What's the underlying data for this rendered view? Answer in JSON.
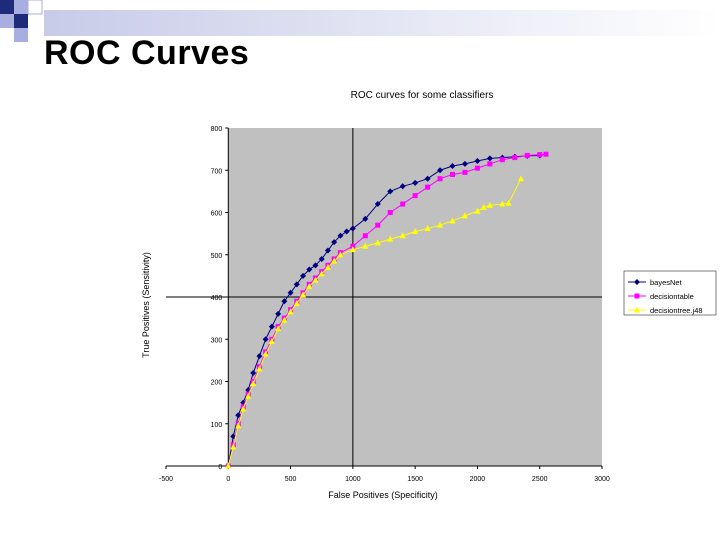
{
  "slide": {
    "title": "ROC Curves"
  },
  "colors": {
    "deco_dark": "#1f2a7a",
    "deco_light": "#a9aee0",
    "plot_bg": "#c0c0c0",
    "series": [
      "#000080",
      "#ff00ff",
      "#ffff00"
    ]
  },
  "chart_data": {
    "type": "line",
    "title": "ROC curves for some classifiers",
    "xlabel": "False Positives (Specificity)",
    "ylabel": "True Positives (Sensitivity)",
    "xlim": [
      -500,
      3000
    ],
    "ylim": [
      0,
      800
    ],
    "xticks": [
      "-500",
      "0",
      "500",
      "1000",
      "1500",
      "2000",
      "2500",
      "3000"
    ],
    "yticks": [
      "0",
      "100",
      "200",
      "300",
      "400",
      "500",
      "600",
      "700",
      "800"
    ],
    "grid": false,
    "legend": "right",
    "series": [
      {
        "name": "bayesNet",
        "marker": "diamond",
        "x": [
          0,
          40,
          80,
          120,
          160,
          200,
          250,
          300,
          350,
          400,
          450,
          500,
          550,
          600,
          650,
          700,
          750,
          800,
          850,
          900,
          950,
          1000,
          1100,
          1200,
          1300,
          1400,
          1500,
          1600,
          1700,
          1800,
          1900,
          2000,
          2100,
          2200,
          2300,
          2400,
          2500
        ],
        "y": [
          0,
          70,
          120,
          150,
          180,
          220,
          260,
          300,
          330,
          360,
          390,
          410,
          430,
          450,
          465,
          475,
          490,
          510,
          530,
          545,
          555,
          562,
          585,
          620,
          650,
          662,
          670,
          680,
          700,
          710,
          715,
          722,
          728,
          730,
          732,
          734,
          735
        ]
      },
      {
        "name": "decisiontable",
        "marker": "square",
        "x": [
          0,
          40,
          80,
          120,
          160,
          200,
          250,
          300,
          350,
          400,
          450,
          500,
          550,
          600,
          650,
          700,
          750,
          800,
          850,
          900,
          1000,
          1100,
          1200,
          1300,
          1400,
          1500,
          1600,
          1700,
          1800,
          1900,
          2000,
          2100,
          2200,
          2300,
          2400,
          2500,
          2550
        ],
        "y": [
          0,
          50,
          100,
          140,
          170,
          200,
          235,
          270,
          300,
          330,
          350,
          370,
          390,
          410,
          430,
          445,
          460,
          475,
          490,
          505,
          520,
          545,
          570,
          600,
          620,
          640,
          660,
          680,
          690,
          695,
          705,
          715,
          725,
          730,
          735,
          737,
          738
        ]
      },
      {
        "name": "decisiontree.j48",
        "marker": "triangle",
        "x": [
          0,
          40,
          80,
          120,
          160,
          200,
          250,
          300,
          350,
          400,
          450,
          500,
          550,
          600,
          650,
          700,
          750,
          800,
          850,
          900,
          1000,
          1100,
          1200,
          1300,
          1400,
          1500,
          1600,
          1700,
          1800,
          1900,
          2000,
          2050,
          2100,
          2200,
          2250,
          2350
        ],
        "y": [
          0,
          45,
          95,
          135,
          165,
          195,
          230,
          265,
          295,
          325,
          345,
          365,
          385,
          405,
          425,
          440,
          455,
          470,
          485,
          500,
          512,
          520,
          528,
          537,
          545,
          555,
          562,
          570,
          580,
          592,
          603,
          612,
          617,
          620,
          622,
          680
        ]
      }
    ]
  }
}
